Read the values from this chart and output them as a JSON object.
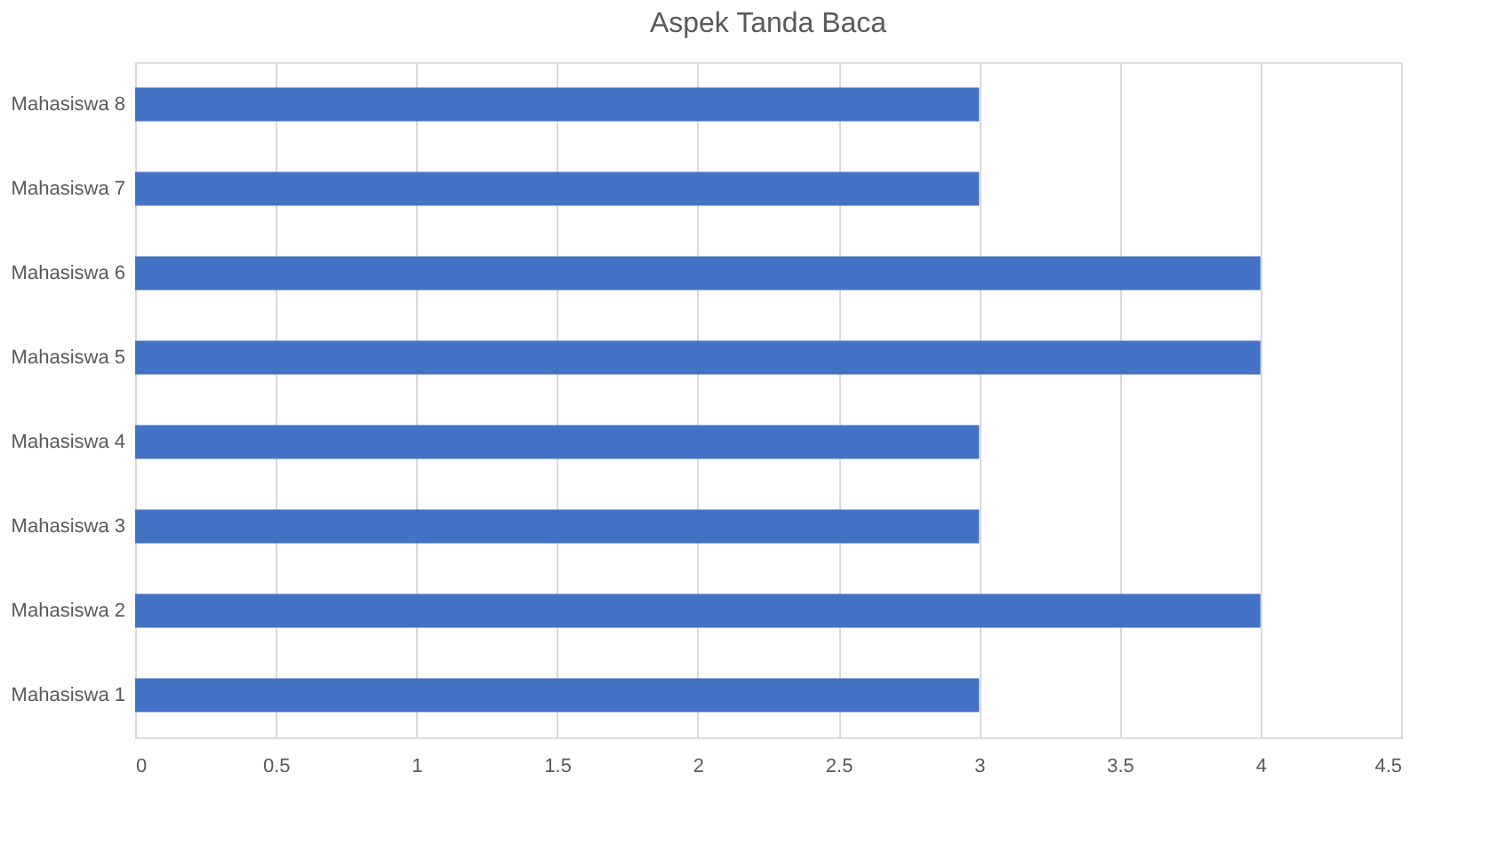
{
  "chart_data": {
    "type": "bar",
    "orientation": "horizontal",
    "title": "Aspek Tanda Baca",
    "categories": [
      "Mahasiswa 8",
      "Mahasiswa 7",
      "Mahasiswa 6",
      "Mahasiswa 5",
      "Mahasiswa 4",
      "Mahasiswa 3",
      "Mahasiswa 2",
      "Mahasiswa 1"
    ],
    "values": [
      3,
      3,
      4,
      4,
      3,
      3,
      4,
      3
    ],
    "color": "#4472c4",
    "xlim": [
      0,
      4.5
    ],
    "xticks": [
      0,
      0.5,
      1,
      1.5,
      2,
      2.5,
      3,
      3.5,
      4,
      4.5
    ],
    "grid": "x"
  }
}
